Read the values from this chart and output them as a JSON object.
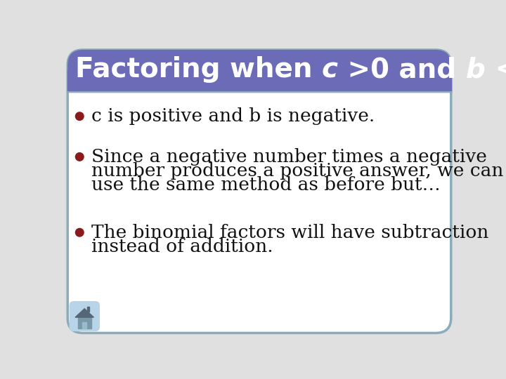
{
  "title_bg_color": "#6B6BB8",
  "title_text_color": "#ffffff",
  "body_bg_color": "#ffffff",
  "outer_bg_color": "#c8c8c8",
  "border_color": "#7799aa",
  "bullet_color": "#8B1A1A",
  "text_color": "#111111",
  "bullet_points": [
    [
      "c is positive and b is negative."
    ],
    [
      "Since a negative number times a negative",
      "number produces a positive answer, we can",
      "use the same method as before but…"
    ],
    [
      "The binomial factors will have subtraction",
      "instead of addition."
    ]
  ],
  "home_icon_color": "#7799bb",
  "home_bg_color": "#aaccee",
  "font_size_title": 28,
  "font_size_body": 19
}
